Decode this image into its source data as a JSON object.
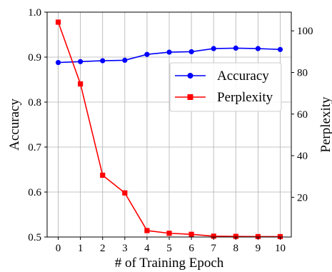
{
  "chart_data": {
    "type": "line",
    "x": [
      0,
      1,
      2,
      3,
      4,
      5,
      6,
      7,
      8,
      9,
      10
    ],
    "xlabel": "# of Training Epoch",
    "ylabel_left": "Accuracy",
    "ylabel_right": "Perplexity",
    "xlim": [
      -0.5,
      10.5
    ],
    "ylim_left": [
      0.5,
      1.0
    ],
    "ylim_right": [
      0.9,
      109
    ],
    "x_ticks": [
      0,
      1,
      2,
      3,
      4,
      5,
      6,
      7,
      8,
      9,
      10
    ],
    "y_left_ticks": [
      0.5,
      0.6,
      0.7,
      0.8,
      0.9,
      1.0
    ],
    "y_right_ticks": [
      20,
      40,
      60,
      80,
      100
    ],
    "grid": true,
    "legend_position": "right",
    "series": [
      {
        "name": "Accuracy",
        "axis": "left",
        "color": "#0000ff",
        "marker": "circle",
        "values": [
          0.888,
          0.89,
          0.892,
          0.893,
          0.906,
          0.911,
          0.912,
          0.919,
          0.92,
          0.919,
          0.917
        ]
      },
      {
        "name": "Perplexity",
        "axis": "right",
        "color": "#ff0000",
        "marker": "square",
        "values": [
          104.2,
          74.5,
          30.6,
          22.1,
          4.0,
          2.7,
          2.2,
          1.3,
          1.2,
          1.1,
          1.1
        ]
      }
    ]
  }
}
